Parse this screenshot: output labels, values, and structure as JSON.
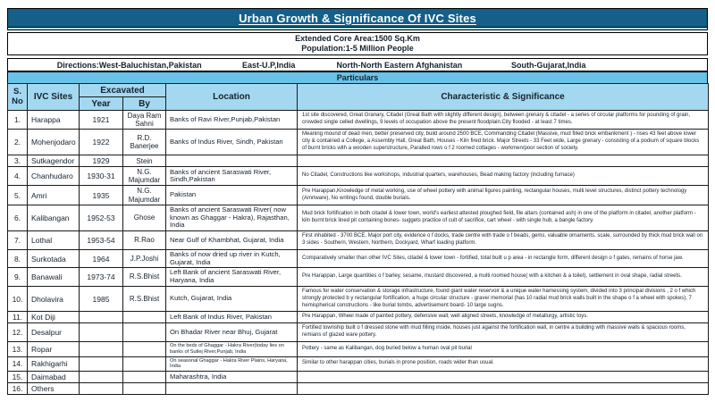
{
  "title": "Urban Growth & Significance Of IVC Sites",
  "info_box": {
    "line1": "Extended Core Area:1500 Sq.Km",
    "line2": "Population:1-5 Million People"
  },
  "directions": {
    "items": [
      "Directions:West-Baluchistan,Pakistan",
      "East-U.P,India",
      "North-North Eastern Afghanistan",
      "South-Gujarat,India"
    ]
  },
  "particulars_label": "Particulars",
  "table": {
    "headers": {
      "sno_line1": "S.",
      "sno_line2": "No",
      "sites": "IVC Sites",
      "excavated": "Excavated",
      "year": "Year",
      "by": "By",
      "location": "Location",
      "characteristic": "Characteristic & Significance"
    },
    "rows": [
      {
        "sno": "1.",
        "site": "Harappa",
        "year": "1921",
        "by": "Daya Ram Sahni",
        "location": "Banks of Ravi River,Punjab,Pakistan",
        "characteristic": "1st site discovered, Great Granary, Citadel (Great Bath with slightly different design), between grenary & citadel - a series of circular platforms for pounding of grain, crowded single celled dwellings, 9 levels of occupation above the present floodplain.City flooded - at least 7 times."
      },
      {
        "sno": "2.",
        "site": "Mohenjodaro",
        "year": "1922",
        "by": "R.D. Banerjee",
        "location": "Banks of Indus River, Sindh, Pakistan",
        "characteristic": "Meaning mound of dead men, better preserved city, build around 2500 BCE, Commanding Citadel (Massive, mud filled brick embankment ) - rises 43 feet above lower city & contained a College, a Assembly Hall, Great Bath, Houses - Kiln fired brick. Major Streets - 33 Feet wide, Large grenary - consisting of a podium of square blocks of burnt bricks with a wooden superstructure, Paralled rows o f 2 roomed cottages - workmen/poor section of society."
      },
      {
        "sno": "3.",
        "site": "Sutkagendor",
        "year": "1929",
        "by": "Stein",
        "location": "",
        "characteristic": ""
      },
      {
        "sno": "4.",
        "site": "Chanhudaro",
        "year": "1930-31",
        "by": "N.G. Majumdar",
        "location": "Banks of ancient Saraswati River, Sindh,Pakistan",
        "characteristic": "No Citadel, Constructions like workshops, industrial quarters, warehouses, Bead making factory (including furnace)"
      },
      {
        "sno": "5.",
        "site": "Amri",
        "year": "1935",
        "by": "N.G. Majumdar",
        "location": "Pakistan",
        "characteristic": "Pre Harappan,Knowledge of metal working, use of wheel pottery with animal figures painting, rectangular houses, multi level structures, distinct pottery technology (Amriware), No writings found, double burials."
      },
      {
        "sno": "6.",
        "site": "Kalibangan",
        "year": "1952-53",
        "by": "Ghose",
        "location": "Banks of ancient Saraswati River( now known as Ghaggar - Hakra), Rajasthan, India",
        "characteristic": "Mud brick fortification in both citadel & lower town, world's earliest attested ploughed field, file altars (contained ash) in one of the platform in citadel, another platform - kiln burnt brick lined pit containing bones- suggets practice of cult of sacrifice, cart wheel - with single hub, a bangle factory."
      },
      {
        "sno": "7.",
        "site": "Lothal",
        "year": "1953-54",
        "by": "R.Rao",
        "location": "Near Gulf of Khambhat, Gujarat, India",
        "characteristic": "First inhabited - 3700 BCE, Major port city, evidence o f docks, trade centre with trade o f beads, gems, valuable ornaments, scale, surrounded by thick mud brick wall on 3 sides - Southern, Western, Northern, Dockyard, Wharf loading platform."
      },
      {
        "sno": "8.",
        "site": "Surkotada",
        "year": "1964",
        "by": "J.P.Joshi",
        "location": "Banks of now dried up river in Kutch, Gujarat, India",
        "characteristic": "Comparatively smaller than other IVC Sites, citadel & lower town - fortified, total built u p area - in rectangle form, different design o f gates, remains of horse jaw."
      },
      {
        "sno": "9.",
        "site": "Banawali",
        "year": "1973-74",
        "by": "R.S.Bhist",
        "location": "Left Bank of ancient Saraswati River, Haryana, India",
        "characteristic": "Pre Harappan, Large quantities o f barley, sesame, mustard discovered, a multi roomed house( with a kitchen & a toilet), settlement in oval shape, radial streets."
      },
      {
        "sno": "10.",
        "site": "Dholavira",
        "year": "1985",
        "by": "R.S.Bhist",
        "location": "Kutch, Gujarat, India",
        "characteristic": "Famous for water conservation & storage infrastructure, found giant water reservoir & a unique water harnessing system, divided into 3 principal divisions , 2 o f which strongly protected b y rectangular fortification, a huge circular structure - grave/ memorial (has 10 radial mud brick walls built in the shape o f a wheel with spokes), 7 hemispherical constructions - like burial tombs, advertisement board- 10 large sugns."
      },
      {
        "sno": "11.",
        "site": "Kot Diji",
        "year": "",
        "by": "",
        "location": "Left Bank of Indus River, Pakistan",
        "characteristic": "Pre Harappan, Wheel made of painted pottery, defensive wall, well aligned streets, knowledge of metallurgy, artistic toys."
      },
      {
        "sno": "12.",
        "site": "Desalpur",
        "year": "",
        "by": "",
        "location": "On Bhadar River near Bhuj, Gujarat",
        "characteristic": "Fortified township built o f dressed stone with mud filling inside, houses just against the fortification wall, in centre a building with massive walls & spacious rooms, remians of glazed ware pottery."
      },
      {
        "sno": "13.",
        "site": "Ropar",
        "year": "",
        "by": "",
        "location": "On the beds of Ghaggar - Hakra River(today lies on banks of Sutlej River,Punjab, India",
        "loc_small": true,
        "characteristic": "Pottery - same as Kalibangan, dog buried below a human oval pit burial"
      },
      {
        "sno": "14.",
        "site": "Rakhigarhi",
        "year": "",
        "by": "",
        "location": "On seasonal Ghaggar - Hakra River Plains, Haryana, India",
        "loc_small": true,
        "characteristic": "Similar to other harappan cities, burials in prone position, roads wider than usual."
      },
      {
        "sno": "15.",
        "site": "Daimabad",
        "year": "",
        "by": "",
        "location": "Maharashtra, India",
        "characteristic": ""
      },
      {
        "sno": "16.",
        "site": "Others",
        "year": "",
        "by": "",
        "location": "",
        "characteristic": ""
      }
    ]
  },
  "colors": {
    "title_bar": "#155f88",
    "strip": "#b5e0f3",
    "particulars_bar": "#69c3e9",
    "header_cell": "#a4d8f1",
    "border": "#1b1b1b",
    "text": "#16222e"
  }
}
